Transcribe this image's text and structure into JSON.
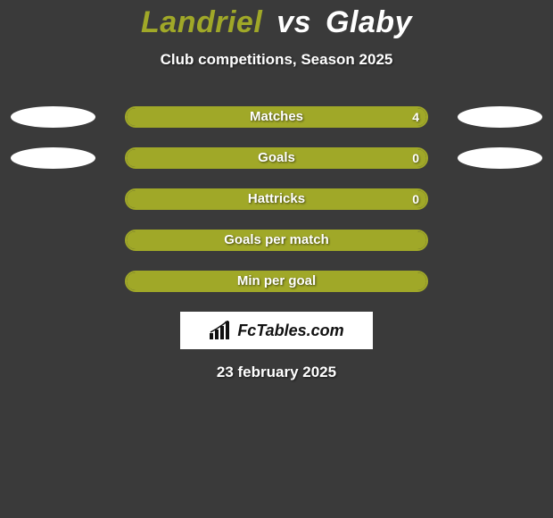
{
  "title": {
    "player1": "Landriel",
    "vs": "vs",
    "player2": "Glaby",
    "player1_color": "#a0a828",
    "vs_color": "#ffffff",
    "player2_color": "#ffffff"
  },
  "subtitle": "Club competitions, Season 2025",
  "chart": {
    "bar_border_color": "#a0a828",
    "bar_fill_color": "#a0a828",
    "background_color": "#3a3a3a",
    "ellipse_color": "#ffffff",
    "text_color": "#ffffff",
    "rows": [
      {
        "label": "Matches",
        "left_val": "",
        "right_val": "4",
        "left_fill_pct": 50,
        "right_fill_pct": 50,
        "show_left_ellipse": true,
        "show_right_ellipse": true,
        "show_left_val": false,
        "show_right_val": true
      },
      {
        "label": "Goals",
        "left_val": "",
        "right_val": "0",
        "left_fill_pct": 50,
        "right_fill_pct": 50,
        "show_left_ellipse": true,
        "show_right_ellipse": true,
        "show_left_val": false,
        "show_right_val": true
      },
      {
        "label": "Hattricks",
        "left_val": "",
        "right_val": "0",
        "left_fill_pct": 50,
        "right_fill_pct": 50,
        "show_left_ellipse": false,
        "show_right_ellipse": false,
        "show_left_val": false,
        "show_right_val": true
      },
      {
        "label": "Goals per match",
        "left_val": "",
        "right_val": "",
        "left_fill_pct": 50,
        "right_fill_pct": 50,
        "show_left_ellipse": false,
        "show_right_ellipse": false,
        "show_left_val": false,
        "show_right_val": false
      },
      {
        "label": "Min per goal",
        "left_val": "",
        "right_val": "",
        "left_fill_pct": 50,
        "right_fill_pct": 50,
        "show_left_ellipse": false,
        "show_right_ellipse": false,
        "show_left_val": false,
        "show_right_val": false
      }
    ]
  },
  "logo_text": "FcTables.com",
  "date": "23 february 2025"
}
